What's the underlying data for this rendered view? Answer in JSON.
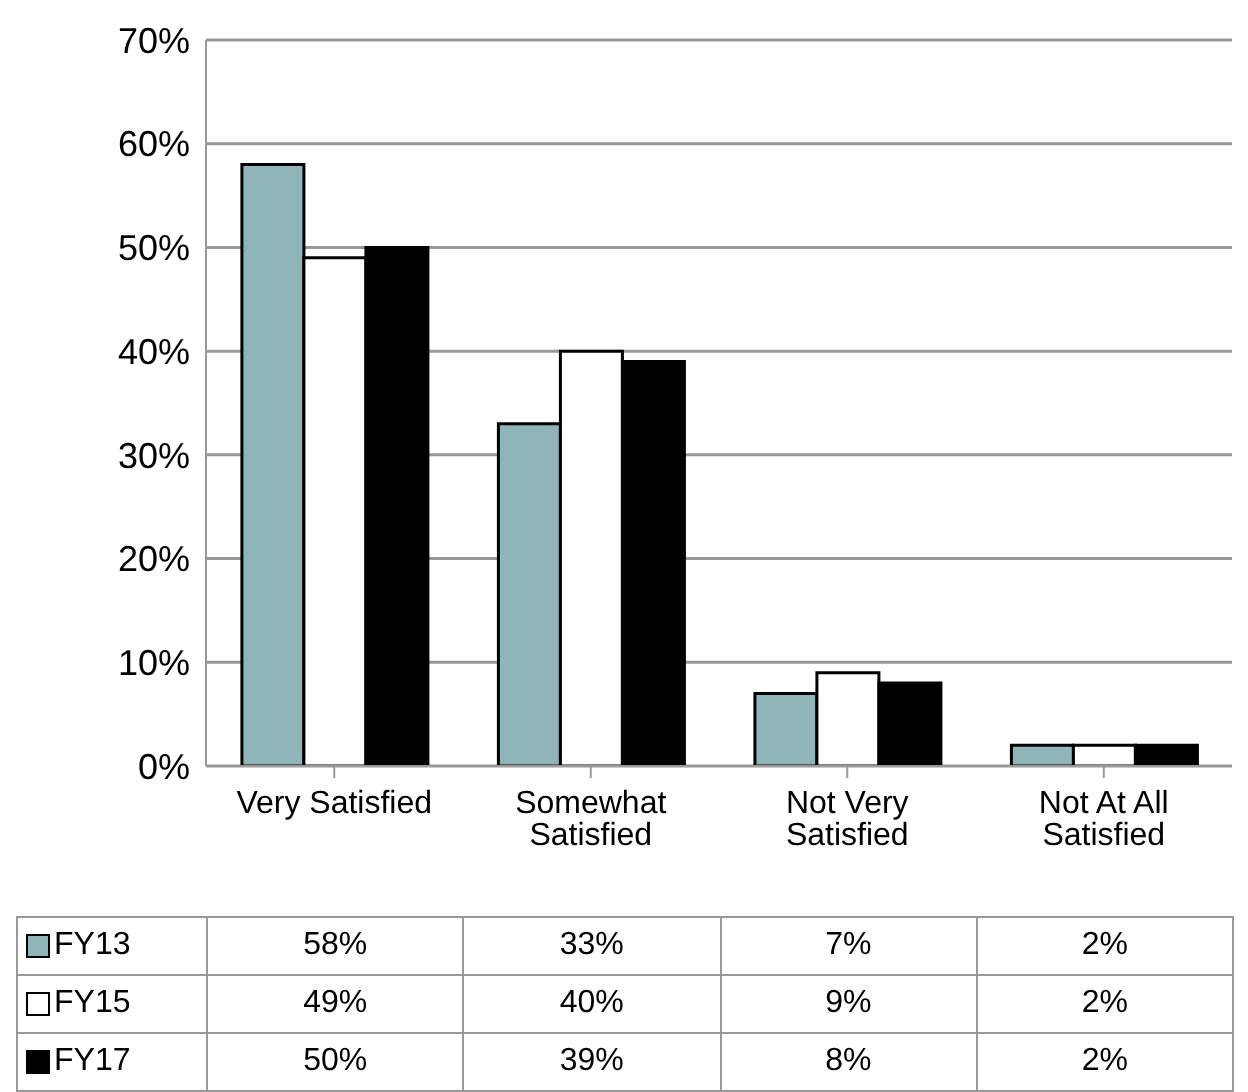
{
  "chart_data": {
    "type": "bar",
    "categories": [
      "Very Satisfied",
      "Somewhat Satisfied",
      "Not Very Satisfied",
      "Not At All Satisfied"
    ],
    "series": [
      {
        "name": "FY13",
        "color": "#8fb5b9",
        "values": [
          58,
          33,
          7,
          2
        ],
        "value_labels": [
          "58%",
          "33%",
          "7%",
          "2%"
        ]
      },
      {
        "name": "FY15",
        "color": "#ffffff",
        "values": [
          49,
          40,
          9,
          2
        ],
        "value_labels": [
          "49%",
          "40%",
          "9%",
          "2%"
        ]
      },
      {
        "name": "FY17",
        "color": "#000000",
        "values": [
          50,
          39,
          8,
          2
        ],
        "value_labels": [
          "50%",
          "39%",
          "8%",
          "2%"
        ]
      }
    ],
    "ylim": [
      0,
      70
    ],
    "yticks": [
      {
        "value": 0,
        "label": "0%"
      },
      {
        "value": 10,
        "label": "10%"
      },
      {
        "value": 20,
        "label": "20%"
      },
      {
        "value": 30,
        "label": "30%"
      },
      {
        "value": 40,
        "label": "40%"
      },
      {
        "value": 50,
        "label": "50%"
      },
      {
        "value": 60,
        "label": "60%"
      },
      {
        "value": 70,
        "label": "70%"
      }
    ],
    "grid": "y",
    "legend": "bottom"
  }
}
